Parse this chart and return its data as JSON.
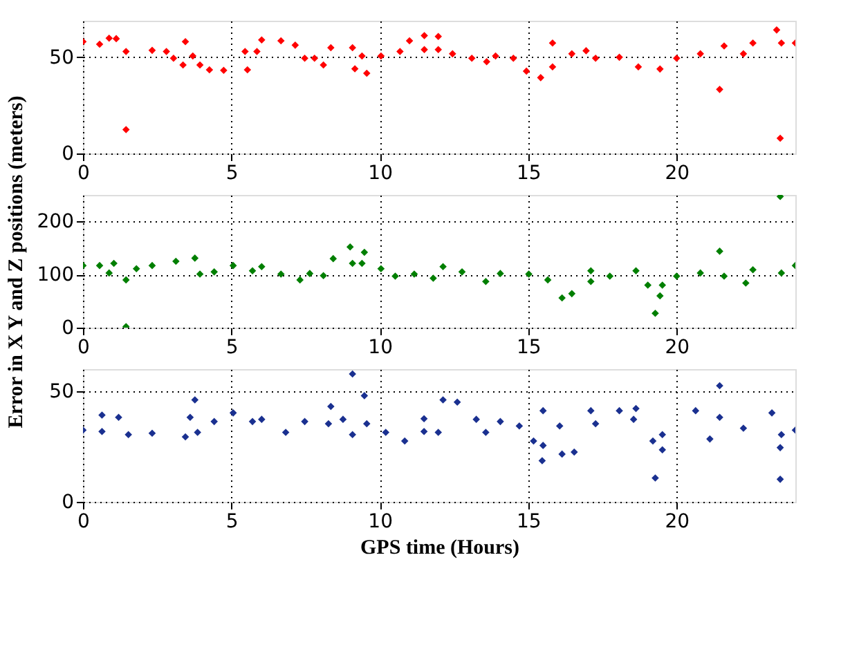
{
  "chart_data": [
    {
      "type": "scatter",
      "marker": "diamond",
      "grid": true,
      "xlim": [
        0,
        24
      ],
      "xticks": [
        0,
        5,
        10,
        15,
        20
      ],
      "ylim": [
        0,
        69
      ],
      "yticks": [
        0,
        50
      ],
      "series": [
        {
          "color": "#ff0000",
          "x": [
            0,
            0.56,
            0.88,
            1.12,
            1.45,
            2.33,
            2.81,
            3.05,
            3.37,
            3.7,
            3.94,
            4.26,
            4.74,
            5.54,
            5.46,
            5.86,
            6.02,
            6.67,
            7.15,
            7.47,
            7.8,
            8.1,
            8.35,
            9.08,
            9.16,
            9.56,
            9.4,
            10.04,
            10.68,
            11,
            11.5,
            11.5,
            11.97,
            11.97,
            12.45,
            13.1,
            13.6,
            13.9,
            14.5,
            14.94,
            15.42,
            15.82,
            15.82,
            16.47,
            16.95,
            17.27,
            18.07,
            18.71,
            19.44,
            20,
            20.8,
            21.6,
            22.25,
            22.57,
            23.37,
            23.53,
            24,
            1.45,
            3.45,
            21.45,
            23.49
          ],
          "values": [
            58.1,
            56.8,
            59.9,
            59.7,
            53,
            53.6,
            53,
            49.5,
            46,
            50.7,
            46,
            43.5,
            43.2,
            43.5,
            53,
            53,
            59,
            58.6,
            56.3,
            49.5,
            49.5,
            46,
            55,
            55,
            44,
            41.7,
            50.7,
            50.7,
            53,
            58.6,
            61.3,
            54,
            60.8,
            54,
            51.8,
            49.5,
            47.7,
            50.7,
            49.5,
            42.8,
            39.4,
            45,
            57.4,
            51.8,
            53.4,
            49.5,
            50,
            45,
            43.9,
            49.5,
            51.8,
            55.9,
            51.8,
            57.4,
            64.2,
            57.4,
            57.4,
            12.4,
            58.1,
            33.3,
            7.9
          ]
        }
      ]
    },
    {
      "type": "scatter",
      "marker": "diamond",
      "grid": true,
      "ylabel": "Error in X Y and Z positions (meters)",
      "xlim": [
        0,
        24
      ],
      "xticks": [
        0,
        5,
        10,
        15,
        20
      ],
      "ylim": [
        0,
        250
      ],
      "yticks": [
        0,
        100,
        200
      ],
      "series": [
        {
          "color": "#007f00",
          "x": [
            0,
            0.56,
            0.88,
            1.04,
            1.45,
            1.8,
            2.33,
            3.13,
            3.77,
            3.94,
            4.42,
            5.06,
            5.71,
            6.02,
            6.67,
            7.31,
            7.64,
            8.1,
            8.43,
            9.08,
            9.0,
            9.48,
            9.4,
            10.04,
            10.52,
            11.16,
            11.8,
            12.13,
            12.77,
            13.57,
            14.06,
            15.02,
            15.66,
            16.14,
            16.47,
            17.11,
            17.11,
            17.75,
            18.63,
            19.03,
            19.28,
            19.44,
            19.52,
            20,
            20.8,
            21.6,
            22.33,
            22.57,
            23.53,
            24,
            1.45,
            21.45,
            23.49
          ],
          "values": [
            117,
            117,
            103,
            121,
            90,
            111,
            117,
            125,
            131,
            101,
            105,
            117,
            107,
            115,
            101,
            90,
            102,
            98,
            130,
            121,
            152,
            142,
            121,
            111,
            97,
            101,
            93,
            115,
            105,
            87,
            102,
            101,
            90,
            56,
            64,
            107,
            87,
            97,
            107,
            80,
            27,
            60,
            80,
            97,
            103,
            97,
            84,
            109,
            103,
            117,
            2,
            144,
            247
          ]
        }
      ]
    },
    {
      "type": "scatter",
      "marker": "diamond",
      "grid": true,
      "xlabel": "GPS time (Hours)",
      "xlim": [
        0,
        24
      ],
      "xticks": [
        0,
        5,
        10,
        15,
        20
      ],
      "ylim": [
        0,
        60
      ],
      "yticks": [
        0,
        50
      ],
      "series": [
        {
          "color": "#1a3090",
          "x": [
            0,
            0.64,
            0.64,
            1.2,
            1.53,
            2.33,
            3.45,
            3.61,
            3.77,
            3.86,
            4.42,
            5.06,
            5.71,
            6.02,
            6.83,
            7.47,
            8.27,
            8.35,
            8.76,
            9.08,
            9.08,
            9.48,
            9.56,
            10.2,
            10.84,
            11.49,
            11.49,
            11.97,
            12.13,
            12.61,
            13.25,
            13.57,
            14.06,
            14.7,
            15.18,
            15.5,
            15.47,
            15.5,
            16.06,
            16.14,
            16.55,
            17.11,
            17.27,
            18.07,
            18.55,
            18.63,
            19.2,
            19.28,
            19.52,
            19.52,
            20.64,
            21.12,
            21.45,
            22.25,
            23.21,
            23.53,
            24,
            21.45,
            23.49,
            23.49
          ],
          "values": [
            32.4,
            31.8,
            39.2,
            38.2,
            30.4,
            31,
            29.4,
            38.2,
            46.1,
            31.4,
            36.3,
            40.2,
            36.3,
            37.3,
            31.4,
            36.3,
            35.3,
            43.1,
            37.3,
            30.4,
            57.8,
            48,
            35.3,
            31.4,
            27.5,
            37.6,
            31.8,
            31.4,
            46.1,
            45.1,
            37.3,
            31.4,
            36.3,
            34.3,
            27.5,
            25.5,
            18.6,
            41.2,
            34.3,
            21.6,
            22.5,
            41.2,
            35.3,
            41.2,
            37.3,
            42.2,
            27.5,
            10.8,
            23.5,
            30.4,
            41.2,
            28.4,
            38.2,
            33.3,
            40.2,
            30.4,
            32.4,
            52.5,
            24.5,
            10.2
          ]
        }
      ]
    }
  ]
}
